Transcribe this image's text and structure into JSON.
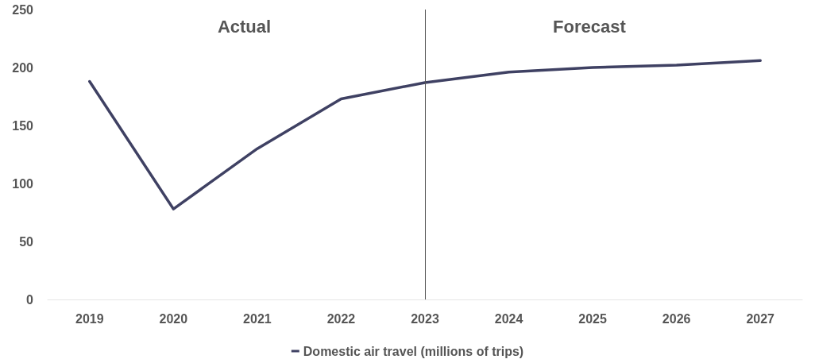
{
  "chart_data": {
    "type": "line",
    "categories": [
      "2019",
      "2020",
      "2021",
      "2022",
      "2023",
      "2024",
      "2025",
      "2026",
      "2027"
    ],
    "series": [
      {
        "name": "Domestic air travel (millions of trips)",
        "color": "#3f4163",
        "values": [
          188,
          78,
          130,
          173,
          187,
          196,
          200,
          202,
          206
        ]
      }
    ],
    "ylim": [
      0,
      250
    ],
    "yticks": [
      0,
      50,
      100,
      150,
      200,
      250
    ],
    "grid": false,
    "legend": "bottom",
    "marker": "none",
    "line_style": "solid",
    "ref_lines": [
      {
        "axis": "x",
        "value": "2023",
        "color": "#555555"
      }
    ],
    "annotations": [
      "Actual",
      "Forecast"
    ]
  }
}
